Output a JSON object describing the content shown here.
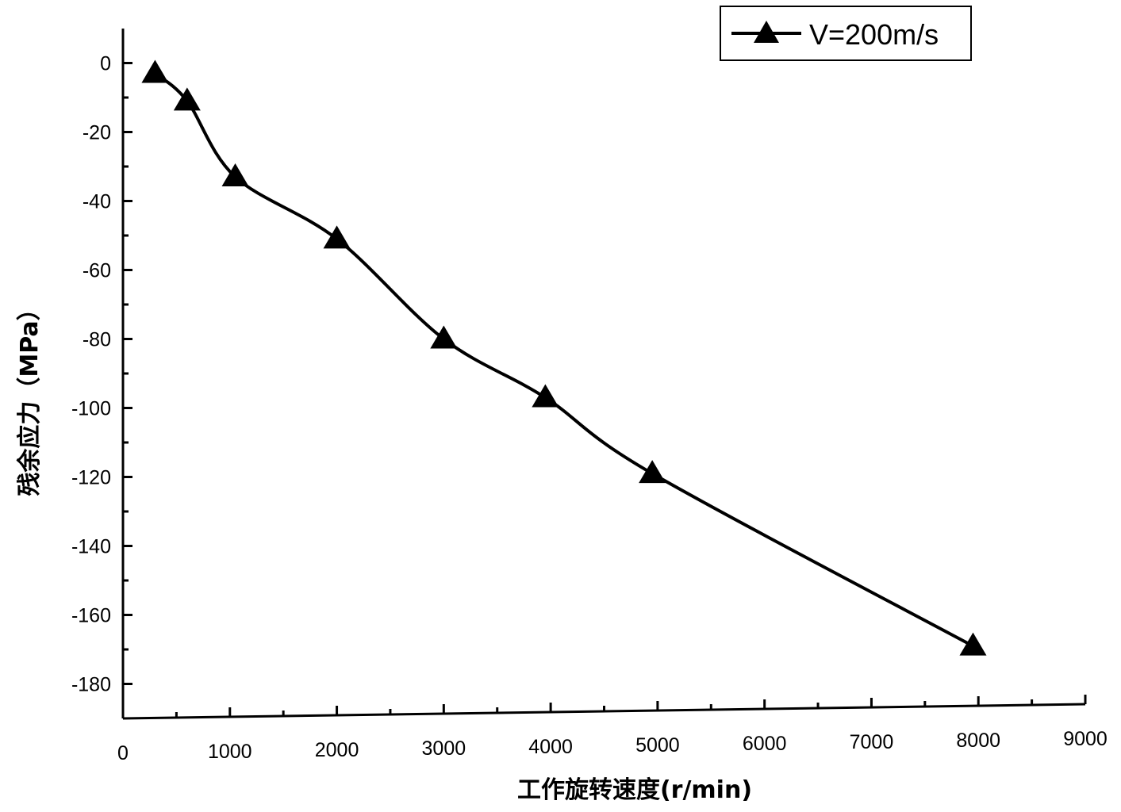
{
  "chart_data": {
    "type": "line",
    "title": "",
    "xlabel": "工作旋转速度(r/min)",
    "ylabel": "残余应力（MPa）",
    "xlim": [
      0,
      9000
    ],
    "ylim": [
      -190,
      10
    ],
    "x_ticks": [
      0,
      1000,
      2000,
      3000,
      4000,
      5000,
      6000,
      7000,
      8000,
      9000
    ],
    "y_ticks": [
      0,
      -20,
      -40,
      -60,
      -80,
      -100,
      -120,
      -140,
      -160,
      -180
    ],
    "grid": false,
    "legend_position": "top-right",
    "series": [
      {
        "name": "V=200m/s",
        "marker": "triangle",
        "color": "#000000",
        "x": [
          300,
          600,
          1050,
          2000,
          3000,
          3950,
          4950,
          7950
        ],
        "y": [
          -3,
          -11,
          -33,
          -51,
          -80,
          -97,
          -119,
          -169
        ]
      }
    ]
  }
}
